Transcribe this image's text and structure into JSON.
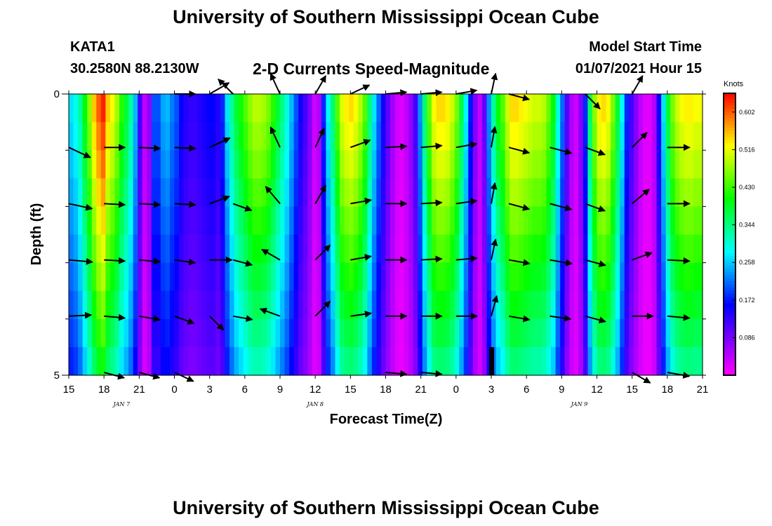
{
  "header": {
    "title": "University of Southern Mississippi Ocean Cube",
    "station": "KATA1",
    "coordinates": "30.2580N 88.2130W",
    "subtitle": "2-D Currents Speed-Magnitude",
    "model_start_label": "Model Start Time",
    "model_start_value": "01/07/2021 Hour 15"
  },
  "footer": {
    "title": "University of Southern Mississippi Ocean Cube"
  },
  "colorbar": {
    "units": "Knots",
    "min": 0.0,
    "max": 0.645,
    "ticks": [
      0.086,
      0.172,
      0.258,
      0.344,
      0.43,
      0.516,
      0.602
    ],
    "tick_labels": [
      "0.086",
      "0.172",
      "0.258",
      "0.344",
      "0.430",
      "0.516",
      "0.602"
    ]
  },
  "chart_data": {
    "type": "heatmap",
    "title": "2-D Currents Speed-Magnitude",
    "xlabel": "Forecast Time(Z)",
    "ylabel": "Depth (ft)",
    "xlim": [
      0,
      54
    ],
    "ylim": [
      0,
      5
    ],
    "x_ticks": [
      0,
      3,
      6,
      9,
      12,
      15,
      18,
      21,
      24,
      27,
      30,
      33,
      36,
      39,
      42,
      45,
      48,
      51,
      54
    ],
    "x_tick_labels": [
      "15",
      "18",
      "21",
      "0",
      "3",
      "6",
      "9",
      "12",
      "15",
      "18",
      "21",
      "0",
      "3",
      "6",
      "9",
      "12",
      "15",
      "18",
      "21"
    ],
    "y_ticks": [
      0,
      5
    ],
    "y_tick_labels": [
      "0",
      "5"
    ],
    "date_labels": [
      {
        "text": "JAN 7",
        "x": 4.5
      },
      {
        "text": "JAN 8",
        "x": 21
      },
      {
        "text": "JAN 9",
        "x": 43.5
      }
    ],
    "speed_columns_knots": [
      0.27,
      0.29,
      0.33,
      0.4,
      0.47,
      0.55,
      0.6,
      0.63,
      0.55,
      0.52,
      0.48,
      0.42,
      0.38,
      0.33,
      0.25,
      0.12,
      0.04,
      0.07,
      0.2,
      0.2,
      0.24,
      0.25,
      0.22,
      0.2,
      0.16,
      0.14,
      0.13,
      0.13,
      0.14,
      0.15,
      0.16,
      0.16,
      0.14,
      0.18,
      0.27,
      0.33,
      0.38,
      0.41,
      0.44,
      0.47,
      0.49,
      0.49,
      0.48,
      0.46,
      0.42,
      0.38,
      0.34,
      0.3,
      0.25,
      0.2,
      0.15,
      0.12,
      0.08,
      0.03,
      0.05,
      0.18,
      0.28,
      0.35,
      0.44,
      0.51,
      0.53,
      0.54,
      0.52,
      0.49,
      0.44,
      0.35,
      0.27,
      0.21,
      0.15,
      0.1,
      0.06,
      0.03,
      0.02,
      0.04,
      0.07,
      0.12,
      0.23,
      0.35,
      0.45,
      0.52,
      0.54,
      0.54,
      0.53,
      0.5,
      0.46,
      0.37,
      0.28,
      0.17,
      0.08,
      0.04,
      0.1,
      0.23,
      0.33,
      0.4,
      0.44,
      0.5,
      0.54,
      0.54,
      0.53,
      0.52,
      0.51,
      0.5,
      0.5,
      0.49,
      0.45,
      0.4,
      0.3,
      0.21,
      0.11,
      0.05,
      0.03,
      0.08,
      0.18,
      0.36,
      0.47,
      0.53,
      0.54,
      0.52,
      0.46,
      0.38,
      0.28,
      0.18,
      0.12,
      0.08,
      0.04,
      0.02,
      0.02,
      0.05,
      0.15,
      0.27,
      0.38,
      0.46,
      0.5,
      0.52,
      0.53,
      0.53,
      0.52,
      0.52
    ],
    "depth_speed_factors": [
      1.0,
      0.97,
      0.94,
      0.9,
      0.86,
      0.82,
      0.78,
      0.74,
      0.7,
      0.65
    ],
    "vectors": [
      {
        "t": 0,
        "depth": 0.95,
        "angle": -25,
        "length": 34
      },
      {
        "t": 0,
        "depth": 1.95,
        "angle": -12,
        "length": 34
      },
      {
        "t": 0,
        "depth": 2.95,
        "angle": -5,
        "length": 34
      },
      {
        "t": 0,
        "depth": 3.95,
        "angle": 3,
        "length": 32
      },
      {
        "t": 3,
        "depth": 0.95,
        "angle": 0,
        "length": 30
      },
      {
        "t": 3,
        "depth": 1.95,
        "angle": -3,
        "length": 30
      },
      {
        "t": 3,
        "depth": 2.95,
        "angle": -3,
        "length": 30
      },
      {
        "t": 3,
        "depth": 3.95,
        "angle": -5,
        "length": 30
      },
      {
        "t": 3,
        "depth": 4.95,
        "angle": -15,
        "length": 30
      },
      {
        "t": 6,
        "depth": 0.95,
        "angle": -3,
        "length": 30
      },
      {
        "t": 6,
        "depth": 1.95,
        "angle": -3,
        "length": 30
      },
      {
        "t": 6,
        "depth": 2.95,
        "angle": -5,
        "length": 30
      },
      {
        "t": 6,
        "depth": 3.95,
        "angle": -10,
        "length": 30
      },
      {
        "t": 6,
        "depth": 4.95,
        "angle": -15,
        "length": 30
      },
      {
        "t": 9,
        "depth": 0.0,
        "angle": 0,
        "length": 30
      },
      {
        "t": 9,
        "depth": 0.95,
        "angle": -3,
        "length": 30
      },
      {
        "t": 9,
        "depth": 1.95,
        "angle": -3,
        "length": 30
      },
      {
        "t": 9,
        "depth": 2.95,
        "angle": -8,
        "length": 30
      },
      {
        "t": 9,
        "depth": 3.95,
        "angle": -20,
        "length": 30
      },
      {
        "t": 9,
        "depth": 4.95,
        "angle": -25,
        "length": 30
      },
      {
        "t": 12,
        "depth": 0.0,
        "angle": 30,
        "length": 32
      },
      {
        "t": 12,
        "depth": 0.95,
        "angle": 25,
        "length": 32
      },
      {
        "t": 12,
        "depth": 1.95,
        "angle": 20,
        "length": 30
      },
      {
        "t": 12,
        "depth": 2.95,
        "angle": 0,
        "length": 32
      },
      {
        "t": 12,
        "depth": 3.95,
        "angle": -45,
        "length": 28
      },
      {
        "t": 14,
        "depth": 0.0,
        "angle": 135,
        "length": 30
      },
      {
        "t": 14,
        "depth": 1.95,
        "angle": -20,
        "length": 28
      },
      {
        "t": 14,
        "depth": 2.95,
        "angle": -15,
        "length": 28
      },
      {
        "t": 14,
        "depth": 3.95,
        "angle": -10,
        "length": 28
      },
      {
        "t": 18,
        "depth": 0.0,
        "angle": 115,
        "length": 32
      },
      {
        "t": 18,
        "depth": 0.95,
        "angle": 115,
        "length": 32
      },
      {
        "t": 18,
        "depth": 1.95,
        "angle": 130,
        "length": 32
      },
      {
        "t": 18,
        "depth": 2.95,
        "angle": 150,
        "length": 30
      },
      {
        "t": 18,
        "depth": 3.95,
        "angle": 160,
        "length": 30
      },
      {
        "t": 21,
        "depth": 0.0,
        "angle": 60,
        "length": 30
      },
      {
        "t": 21,
        "depth": 0.95,
        "angle": 65,
        "length": 30
      },
      {
        "t": 21,
        "depth": 1.95,
        "angle": 60,
        "length": 30
      },
      {
        "t": 21,
        "depth": 2.95,
        "angle": 45,
        "length": 30
      },
      {
        "t": 21,
        "depth": 3.95,
        "angle": 45,
        "length": 30
      },
      {
        "t": 24,
        "depth": 0.0,
        "angle": 25,
        "length": 30
      },
      {
        "t": 24,
        "depth": 0.95,
        "angle": 20,
        "length": 30
      },
      {
        "t": 24,
        "depth": 1.95,
        "angle": 10,
        "length": 30
      },
      {
        "t": 24,
        "depth": 2.95,
        "angle": 10,
        "length": 30
      },
      {
        "t": 24,
        "depth": 3.95,
        "angle": 8,
        "length": 30
      },
      {
        "t": 27,
        "depth": 0.0,
        "angle": 5,
        "length": 30
      },
      {
        "t": 27,
        "depth": 0.95,
        "angle": 3,
        "length": 30
      },
      {
        "t": 27,
        "depth": 1.95,
        "angle": 0,
        "length": 30
      },
      {
        "t": 27,
        "depth": 2.95,
        "angle": 0,
        "length": 30
      },
      {
        "t": 27,
        "depth": 3.95,
        "angle": 0,
        "length": 30
      },
      {
        "t": 27,
        "depth": 4.95,
        "angle": -5,
        "length": 30
      },
      {
        "t": 30,
        "depth": 0.0,
        "angle": 5,
        "length": 30
      },
      {
        "t": 30,
        "depth": 0.95,
        "angle": 5,
        "length": 30
      },
      {
        "t": 30,
        "depth": 1.95,
        "angle": 3,
        "length": 30
      },
      {
        "t": 30,
        "depth": 2.95,
        "angle": 3,
        "length": 30
      },
      {
        "t": 30,
        "depth": 3.95,
        "angle": 0,
        "length": 30
      },
      {
        "t": 30,
        "depth": 4.95,
        "angle": -5,
        "length": 30
      },
      {
        "t": 33,
        "depth": 0.0,
        "angle": 10,
        "length": 30
      },
      {
        "t": 33,
        "depth": 0.95,
        "angle": 10,
        "length": 30
      },
      {
        "t": 33,
        "depth": 1.95,
        "angle": 8,
        "length": 30
      },
      {
        "t": 33,
        "depth": 2.95,
        "angle": 5,
        "length": 30
      },
      {
        "t": 33,
        "depth": 3.95,
        "angle": 0,
        "length": 30
      },
      {
        "t": 36,
        "depth": 0.0,
        "angle": 78,
        "length": 30
      },
      {
        "t": 36,
        "depth": 0.95,
        "angle": 80,
        "length": 30
      },
      {
        "t": 36,
        "depth": 1.95,
        "angle": 80,
        "length": 30
      },
      {
        "t": 36,
        "depth": 2.95,
        "angle": 78,
        "length": 30
      },
      {
        "t": 36,
        "depth": 3.95,
        "angle": 75,
        "length": 30
      },
      {
        "t": 37.5,
        "depth": 0.0,
        "angle": -15,
        "length": 30
      },
      {
        "t": 37.5,
        "depth": 0.95,
        "angle": -15,
        "length": 30
      },
      {
        "t": 37.5,
        "depth": 1.95,
        "angle": -15,
        "length": 30
      },
      {
        "t": 37.5,
        "depth": 2.95,
        "angle": -10,
        "length": 30
      },
      {
        "t": 37.5,
        "depth": 3.95,
        "angle": -10,
        "length": 30
      },
      {
        "t": 41,
        "depth": 0.95,
        "angle": -15,
        "length": 32
      },
      {
        "t": 41,
        "depth": 1.95,
        "angle": -15,
        "length": 32
      },
      {
        "t": 41,
        "depth": 2.95,
        "angle": -10,
        "length": 32
      },
      {
        "t": 41,
        "depth": 3.95,
        "angle": -8,
        "length": 30
      },
      {
        "t": 44,
        "depth": 0.0,
        "angle": -45,
        "length": 30
      },
      {
        "t": 44,
        "depth": 0.95,
        "angle": -20,
        "length": 30
      },
      {
        "t": 44,
        "depth": 1.95,
        "angle": -20,
        "length": 30
      },
      {
        "t": 44,
        "depth": 2.95,
        "angle": -15,
        "length": 30
      },
      {
        "t": 44,
        "depth": 3.95,
        "angle": -15,
        "length": 30
      },
      {
        "t": 48,
        "depth": 0.0,
        "angle": 60,
        "length": 30
      },
      {
        "t": 48,
        "depth": 0.95,
        "angle": 45,
        "length": 30
      },
      {
        "t": 48,
        "depth": 1.95,
        "angle": 40,
        "length": 32
      },
      {
        "t": 48,
        "depth": 2.95,
        "angle": 20,
        "length": 30
      },
      {
        "t": 48,
        "depth": 3.95,
        "angle": 0,
        "length": 30
      },
      {
        "t": 48,
        "depth": 4.95,
        "angle": -30,
        "length": 30
      },
      {
        "t": 51,
        "depth": 0.95,
        "angle": 0,
        "length": 32
      },
      {
        "t": 51,
        "depth": 1.95,
        "angle": 0,
        "length": 32
      },
      {
        "t": 51,
        "depth": 2.95,
        "angle": -3,
        "length": 32
      },
      {
        "t": 51,
        "depth": 3.95,
        "angle": -5,
        "length": 32
      },
      {
        "t": 51,
        "depth": 4.95,
        "angle": -10,
        "length": 32
      }
    ]
  }
}
